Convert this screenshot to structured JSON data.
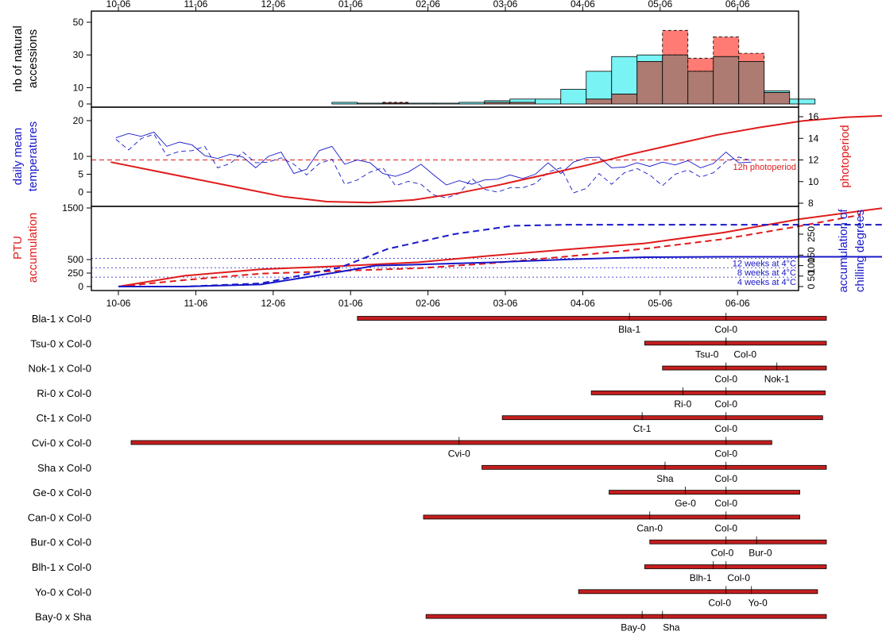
{
  "colors": {
    "hist_a": "#79f3f3",
    "hist_b": "#ff7b73",
    "hist_overlap": "#ad7b72",
    "red": "#e01b1b",
    "blue": "#1818c8",
    "bar_fill": "#c41e1e"
  },
  "date_ticks": [
    "10-06",
    "11-06",
    "12-06",
    "01-06",
    "02-06",
    "03-06",
    "04-06",
    "05-06",
    "06-06"
  ],
  "chart_data": [
    {
      "type": "bar",
      "ylabel": [
        "nb of natural",
        "accessions"
      ],
      "yticks": [
        "0",
        "10",
        "30",
        "50"
      ],
      "ylim": [
        0,
        50
      ],
      "xlim": [
        "10-06",
        "06-06"
      ],
      "bin_width_days": 10,
      "series": [
        {
          "color": "cyan",
          "bins": [
            {
              "start": "2005-12-29",
              "value": 1
            },
            {
              "start": "2006-01-08",
              "value": 0.5
            },
            {
              "start": "2006-01-18",
              "value": 0.5
            },
            {
              "start": "2006-01-28",
              "value": 0.5
            },
            {
              "start": "2006-02-07",
              "value": 0.5
            },
            {
              "start": "2006-02-17",
              "value": 1
            },
            {
              "start": "2006-02-27",
              "value": 2
            },
            {
              "start": "2006-03-09",
              "value": 3
            },
            {
              "start": "2006-03-19",
              "value": 3
            },
            {
              "start": "2006-03-29",
              "value": 9
            },
            {
              "start": "2006-04-08",
              "value": 20
            },
            {
              "start": "2006-04-18",
              "value": 29
            },
            {
              "start": "2006-04-28",
              "value": 30
            },
            {
              "start": "2006-05-08",
              "value": 30
            },
            {
              "start": "2006-05-18",
              "value": 20
            },
            {
              "start": "2006-05-28",
              "value": 29
            },
            {
              "start": "2006-06-07",
              "value": 26
            },
            {
              "start": "2006-06-17",
              "value": 8
            },
            {
              "start": "2006-06-27",
              "value": 3
            }
          ]
        },
        {
          "color": "salmon",
          "bins": [
            {
              "start": "2006-01-18",
              "value": 1
            },
            {
              "start": "2006-02-27",
              "value": 1
            },
            {
              "start": "2006-03-09",
              "value": 1
            },
            {
              "start": "2006-04-08",
              "value": 3
            },
            {
              "start": "2006-04-18",
              "value": 6
            },
            {
              "start": "2006-04-28",
              "value": 26
            },
            {
              "start": "2006-05-08",
              "value": 45
            },
            {
              "start": "2006-05-18",
              "value": 28
            },
            {
              "start": "2006-05-28",
              "value": 41
            },
            {
              "start": "2006-06-07",
              "value": 31
            },
            {
              "start": "2006-06-17",
              "value": 7
            }
          ]
        }
      ]
    },
    {
      "type": "line",
      "ylabel_left": [
        "daily mean",
        "temperatures"
      ],
      "ylabel_right": "photoperiod",
      "yticks_left": [
        "0",
        "5",
        "10",
        "20"
      ],
      "yticks_right": [
        "8",
        "10",
        "12",
        "14",
        "16"
      ],
      "ylim_left": [
        -2,
        24
      ],
      "ylim_right": [
        7.8,
        16.6
      ],
      "annotation": "12h photoperiod",
      "photoperiod_reference": 12,
      "photoperiod_curve": [
        {
          "x": "2005-10-03",
          "y": 11.8
        },
        {
          "x": "2005-10-20",
          "y": 11.0
        },
        {
          "x": "2005-11-06",
          "y": 10.2
        },
        {
          "x": "2005-11-23",
          "y": 9.4
        },
        {
          "x": "2005-12-10",
          "y": 8.6
        },
        {
          "x": "2005-12-27",
          "y": 8.15
        },
        {
          "x": "2006-01-13",
          "y": 8.05
        },
        {
          "x": "2006-01-30",
          "y": 8.3
        },
        {
          "x": "2006-02-16",
          "y": 8.9
        },
        {
          "x": "2006-03-05",
          "y": 9.7
        },
        {
          "x": "2006-03-22",
          "y": 10.6
        },
        {
          "x": "2006-04-08",
          "y": 11.5
        },
        {
          "x": "2006-04-25",
          "y": 12.5
        },
        {
          "x": "2006-05-12",
          "y": 13.4
        },
        {
          "x": "2006-05-29",
          "y": 14.3
        },
        {
          "x": "2006-06-15",
          "y": 15.0
        },
        {
          "x": "2006-07-02",
          "y": 15.6
        },
        {
          "x": "2006-07-19",
          "y": 15.95
        },
        {
          "x": "2006-08-05",
          "y": 16.1
        }
      ],
      "temperature_series": [
        {
          "style": "solid",
          "start": "2005-10-05",
          "step_days": 5,
          "values": [
            17,
            17,
            15,
            15,
            14,
            14,
            12,
            12,
            10,
            10,
            8,
            8,
            10,
            10,
            7,
            7,
            11,
            11,
            9,
            9,
            7,
            7,
            5,
            5,
            6,
            6,
            2,
            2,
            4,
            4,
            3,
            3,
            5,
            5,
            7,
            7,
            9,
            9,
            8,
            8,
            7,
            7,
            9,
            9,
            7,
            7,
            8,
            8,
            10,
            10,
            9,
            9,
            11,
            11,
            12,
            12,
            13,
            13,
            14,
            14,
            13,
            13,
            15,
            15,
            16,
            16,
            17,
            17,
            18,
            18,
            17,
            17,
            19,
            19,
            18,
            18,
            17,
            17,
            22,
            22,
            18,
            18,
            19,
            19,
            20,
            20,
            17,
            17
          ]
        },
        {
          "style": "dashed",
          "start": "2005-10-05",
          "step_days": 5,
          "values": [
            13,
            13,
            15,
            15,
            12,
            12,
            11,
            11,
            8,
            8,
            10,
            10,
            9,
            9,
            6,
            6,
            8,
            8,
            4,
            4,
            5,
            5,
            3,
            3,
            1,
            1,
            -1,
            -1,
            2,
            2,
            0,
            0,
            3,
            3,
            5,
            5,
            1,
            1,
            4,
            4,
            6,
            6,
            3,
            3,
            5,
            5,
            6,
            6,
            8,
            8,
            10,
            10,
            9,
            9,
            12,
            12,
            11,
            11,
            12,
            12,
            14,
            14,
            13,
            13,
            15,
            15,
            16,
            16,
            17,
            17,
            15,
            15,
            18,
            18,
            16,
            16,
            18,
            18,
            19,
            19,
            17,
            17,
            18,
            18,
            20,
            20,
            16,
            16
          ]
        }
      ]
    },
    {
      "type": "line",
      "ylabel_left": [
        "PTU",
        "accumulation"
      ],
      "ylabel_right": [
        "accumulation of",
        "chilling degrees"
      ],
      "yticks_left": [
        "0",
        "250",
        "500",
        "1500"
      ],
      "yticks_right": [
        "0",
        "50",
        "100",
        "150",
        "250"
      ],
      "ylim_left": [
        0,
        1500
      ],
      "ylim_right": [
        0,
        300
      ],
      "reference_lines": [
        {
          "label": "12 weeks at 4°C",
          "value": 135
        },
        {
          "label": "8 weeks at 4°C",
          "value": 90
        },
        {
          "label": "4 weeks at 4°C",
          "value": 45
        }
      ],
      "series": [
        {
          "axis": "left",
          "style": "solid",
          "color": "red",
          "points": [
            {
              "x": "2005-10-06",
              "y": 0
            },
            {
              "x": "2005-11-01",
              "y": 200
            },
            {
              "x": "2005-12-01",
              "y": 320
            },
            {
              "x": "2006-01-01",
              "y": 380
            },
            {
              "x": "2006-02-01",
              "y": 450
            },
            {
              "x": "2006-03-01",
              "y": 570
            },
            {
              "x": "2006-04-01",
              "y": 690
            },
            {
              "x": "2006-05-01",
              "y": 800
            },
            {
              "x": "2006-06-01",
              "y": 1000
            },
            {
              "x": "2006-07-01",
              "y": 1250
            },
            {
              "x": "2006-08-03",
              "y": 1460
            }
          ]
        },
        {
          "axis": "left",
          "style": "dashed",
          "color": "red",
          "points": [
            {
              "x": "2005-10-06",
              "y": 0
            },
            {
              "x": "2005-11-01",
              "y": 120
            },
            {
              "x": "2005-12-01",
              "y": 240
            },
            {
              "x": "2006-01-01",
              "y": 290
            },
            {
              "x": "2006-02-01",
              "y": 340
            },
            {
              "x": "2006-03-01",
              "y": 430
            },
            {
              "x": "2006-04-01",
              "y": 560
            },
            {
              "x": "2006-05-01",
              "y": 700
            },
            {
              "x": "2006-06-01",
              "y": 880
            },
            {
              "x": "2006-07-01",
              "y": 1120
            },
            {
              "x": "2006-07-25",
              "y": 1330
            }
          ]
        },
        {
          "axis": "right",
          "style": "solid",
          "color": "blue",
          "points": [
            {
              "x": "2005-10-06",
              "y": 0
            },
            {
              "x": "2005-11-01",
              "y": 0
            },
            {
              "x": "2005-12-01",
              "y": 10
            },
            {
              "x": "2006-01-01",
              "y": 70
            },
            {
              "x": "2006-01-15",
              "y": 100
            },
            {
              "x": "2006-02-01",
              "y": 105
            },
            {
              "x": "2006-03-01",
              "y": 115
            },
            {
              "x": "2006-04-01",
              "y": 130
            },
            {
              "x": "2006-05-01",
              "y": 140
            },
            {
              "x": "2006-06-01",
              "y": 142
            },
            {
              "x": "2006-08-03",
              "y": 142
            }
          ]
        },
        {
          "axis": "right",
          "style": "dashed",
          "color": "blue",
          "points": [
            {
              "x": "2005-10-06",
              "y": 0
            },
            {
              "x": "2005-11-01",
              "y": 0
            },
            {
              "x": "2005-12-01",
              "y": 15
            },
            {
              "x": "2006-01-01",
              "y": 90
            },
            {
              "x": "2006-01-20",
              "y": 180
            },
            {
              "x": "2006-02-15",
              "y": 250
            },
            {
              "x": "2006-03-10",
              "y": 290
            },
            {
              "x": "2006-04-01",
              "y": 295
            },
            {
              "x": "2006-08-03",
              "y": 295
            }
          ]
        }
      ]
    },
    {
      "type": "bar",
      "orientation": "horizontal-range",
      "rows": [
        {
          "label": "Bla-1 x Col-0",
          "start": "2006-01-08",
          "end": "2006-07-12",
          "ticks": [
            {
              "label": "Bla-1",
              "x": "2006-04-25"
            },
            {
              "label": "Col-0",
              "x": "2006-06-02"
            }
          ]
        },
        {
          "label": "Tsu-0 x Col-0",
          "start": "2006-05-01",
          "end": "2006-08-08",
          "ticks": [
            {
              "label": "Tsu-0",
              "x": "2006-06-02"
            },
            {
              "label": "Col-0",
              "x": "2006-06-02"
            }
          ]
        },
        {
          "label": "Nok-1 x Col-0",
          "start": "2006-05-08",
          "end": "2006-07-20",
          "ticks": [
            {
              "label": "Col-0",
              "x": "2006-06-02"
            },
            {
              "label": "Nok-1",
              "x": "2006-06-22"
            }
          ]
        },
        {
          "label": "Ri-0 x Col-0",
          "start": "2006-04-10",
          "end": "2006-07-11",
          "ticks": [
            {
              "label": "Ri-0",
              "x": "2006-05-16"
            },
            {
              "label": "Col-0",
              "x": "2006-06-02"
            }
          ]
        },
        {
          "label": "Ct-1 x Col-0",
          "start": "2006-03-06",
          "end": "2006-07-10",
          "ticks": [
            {
              "label": "Ct-1",
              "x": "2006-04-30"
            },
            {
              "label": "Col-0",
              "x": "2006-06-02"
            }
          ]
        },
        {
          "label": "Cvi-0 x Col-0",
          "start": "2005-10-11",
          "end": "2006-06-20",
          "ticks": [
            {
              "label": "Cvi-0",
              "x": "2006-02-17"
            },
            {
              "label": "Col-0",
              "x": "2006-06-02"
            }
          ]
        },
        {
          "label": "Sha x Col-0",
          "start": "2006-02-26",
          "end": "2006-08-10",
          "ticks": [
            {
              "label": "Sha",
              "x": "2006-05-09"
            },
            {
              "label": "Col-0",
              "x": "2006-06-02"
            }
          ]
        },
        {
          "label": "Ge-0 x Col-0",
          "start": "2006-04-17",
          "end": "2006-07-01",
          "ticks": [
            {
              "label": "Ge-0",
              "x": "2006-05-17"
            },
            {
              "label": "Col-0",
              "x": "2006-06-02"
            }
          ]
        },
        {
          "label": "Can-0 x Col-0",
          "start": "2006-02-03",
          "end": "2006-07-01",
          "ticks": [
            {
              "label": "Can-0",
              "x": "2006-05-03"
            },
            {
              "label": "Col-0",
              "x": "2006-06-02"
            }
          ]
        },
        {
          "label": "Bur-0 x Col-0",
          "start": "2006-05-03",
          "end": "2006-08-15",
          "ticks": [
            {
              "label": "Col-0",
              "x": "2006-06-02"
            },
            {
              "label": "Bur-0",
              "x": "2006-06-14"
            }
          ]
        },
        {
          "label": "Blh-1 x Col-0",
          "start": "2006-05-01",
          "end": "2006-08-24",
          "ticks": [
            {
              "label": "Blh-1",
              "x": "2006-05-28"
            },
            {
              "label": "Col-0",
              "x": "2006-06-02"
            }
          ]
        },
        {
          "label": "Yo-0 x Col-0",
          "start": "2006-04-05",
          "end": "2006-07-08",
          "ticks": [
            {
              "label": "Col-0",
              "x": "2006-06-02"
            },
            {
              "label": "Yo-0",
              "x": "2006-06-12"
            }
          ]
        },
        {
          "label": "Bay-0 x Sha",
          "start": "2006-02-04",
          "end": "2006-07-27",
          "ticks": [
            {
              "label": "Bay-0",
              "x": "2006-04-30"
            },
            {
              "label": "Sha",
              "x": "2006-05-08"
            }
          ]
        }
      ]
    }
  ]
}
